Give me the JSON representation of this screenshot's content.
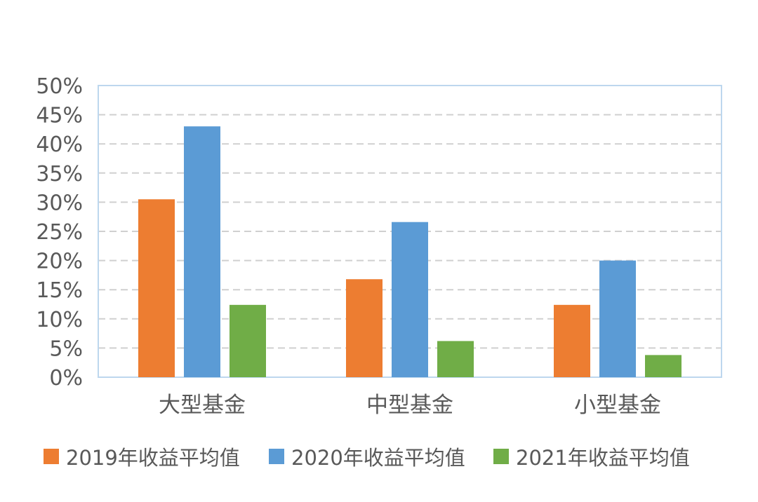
{
  "chart_data": {
    "type": "bar",
    "categories": [
      "大型基金",
      "中型基金",
      "小型基金"
    ],
    "series": [
      {
        "name": "2019年收益平均值",
        "color": "#ED7D31",
        "values": [
          30.5,
          16.8,
          12.4
        ]
      },
      {
        "name": "2020年收益平均值",
        "color": "#5B9BD5",
        "values": [
          43.0,
          26.6,
          20.0
        ]
      },
      {
        "name": "2021年收益平均值",
        "color": "#70AD47",
        "values": [
          12.4,
          6.2,
          3.8
        ]
      }
    ],
    "ylim": [
      0,
      50
    ],
    "ytick_labels": [
      "0%",
      "5%",
      "10%",
      "15%",
      "20%",
      "25%",
      "30%",
      "35%",
      "40%",
      "45%",
      "50%"
    ],
    "grid": true,
    "legend_position": "bottom"
  }
}
